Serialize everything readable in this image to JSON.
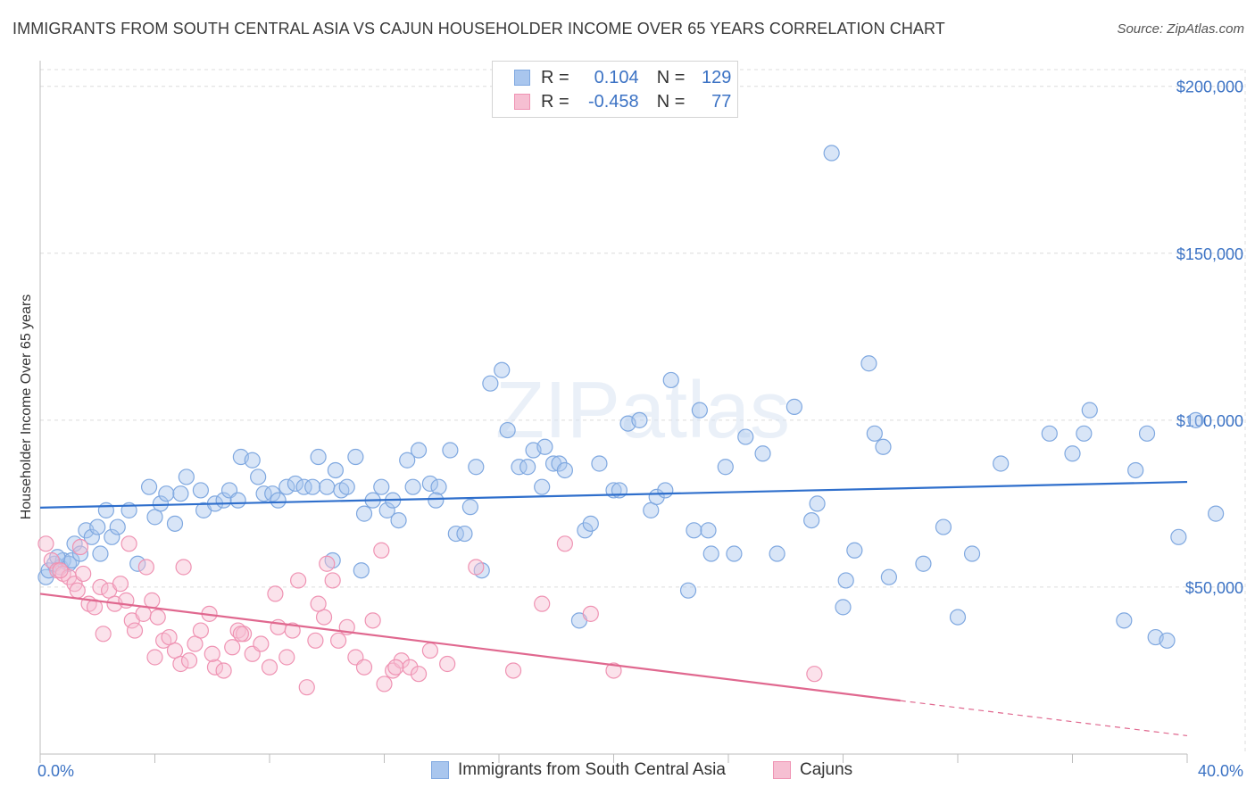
{
  "title": "IMMIGRANTS FROM SOUTH CENTRAL ASIA VS CAJUN HOUSEHOLDER INCOME OVER 65 YEARS CORRELATION CHART",
  "source": "Source: ZipAtlas.com",
  "watermark": "ZIPatlas",
  "colors": {
    "blue": "#7fa8e0",
    "blue_fill": "#a9c6ee",
    "blue_line": "#2f6fcc",
    "pink": "#ef93b3",
    "pink_fill": "#f6bfd2",
    "pink_line": "#e0688f",
    "axis_text": "#3b72c4",
    "grid": "#dcdcdc"
  },
  "legend": {
    "rows": [
      {
        "r_label": "R =",
        "r_value": "0.104",
        "n_label": "N =",
        "n_value": "129"
      },
      {
        "r_label": "R =",
        "r_value": "-0.458",
        "n_label": "N =",
        "n_value": "77"
      }
    ]
  },
  "bottom_legend": [
    "Immigrants from South Central Asia",
    "Cajuns"
  ],
  "chart_data": {
    "type": "scatter",
    "title": "IMMIGRANTS FROM SOUTH CENTRAL ASIA VS CAJUN HOUSEHOLDER INCOME OVER 65 YEARS CORRELATION CHART",
    "xlabel": "",
    "ylabel": "Householder Income Over 65 years",
    "xlim": [
      0,
      40
    ],
    "ylim": [
      0,
      205000
    ],
    "x_tick_labels": [
      "0.0%",
      "40.0%"
    ],
    "y_ticks": [
      50000,
      100000,
      150000,
      200000
    ],
    "y_tick_labels": [
      "$50,000",
      "$100,000",
      "$150,000",
      "$200,000"
    ],
    "grid": true,
    "legend_position": "top-center",
    "series": [
      {
        "name": "Immigrants from South Central Asia",
        "R": 0.104,
        "N": 129,
        "trend": {
          "x": [
            0,
            40
          ],
          "y": [
            73800,
            81500
          ]
        },
        "points": [
          [
            0.2,
            53000
          ],
          [
            0.3,
            55000
          ],
          [
            0.5,
            57000
          ],
          [
            0.7,
            56000
          ],
          [
            0.8,
            58000
          ],
          [
            1.0,
            57000
          ],
          [
            1.1,
            58000
          ],
          [
            0.6,
            59000
          ],
          [
            1.2,
            63000
          ],
          [
            1.4,
            60000
          ],
          [
            1.6,
            67000
          ],
          [
            1.8,
            65000
          ],
          [
            2.0,
            68000
          ],
          [
            2.3,
            73000
          ],
          [
            2.5,
            65000
          ],
          [
            2.7,
            68000
          ],
          [
            3.1,
            73000
          ],
          [
            3.4,
            57000
          ],
          [
            3.8,
            80000
          ],
          [
            4.0,
            71000
          ],
          [
            4.2,
            75000
          ],
          [
            4.4,
            78000
          ],
          [
            4.7,
            69000
          ],
          [
            4.9,
            78000
          ],
          [
            5.1,
            83000
          ],
          [
            5.6,
            79000
          ],
          [
            5.7,
            73000
          ],
          [
            6.1,
            75000
          ],
          [
            6.4,
            76000
          ],
          [
            6.6,
            79000
          ],
          [
            6.9,
            76000
          ],
          [
            7.0,
            89000
          ],
          [
            7.4,
            88000
          ],
          [
            7.6,
            83000
          ],
          [
            7.8,
            78000
          ],
          [
            8.1,
            78000
          ],
          [
            8.3,
            76000
          ],
          [
            8.6,
            80000
          ],
          [
            8.9,
            81000
          ],
          [
            9.2,
            80000
          ],
          [
            9.5,
            80000
          ],
          [
            9.7,
            89000
          ],
          [
            10.0,
            80000
          ],
          [
            10.3,
            85000
          ],
          [
            10.5,
            79000
          ],
          [
            10.7,
            80000
          ],
          [
            10.2,
            58000
          ],
          [
            11.0,
            89000
          ],
          [
            11.2,
            55000
          ],
          [
            11.3,
            72000
          ],
          [
            11.6,
            76000
          ],
          [
            11.9,
            80000
          ],
          [
            12.1,
            73000
          ],
          [
            12.3,
            76000
          ],
          [
            12.5,
            70000
          ],
          [
            12.8,
            88000
          ],
          [
            13.0,
            80000
          ],
          [
            13.2,
            91000
          ],
          [
            13.6,
            81000
          ],
          [
            13.9,
            80000
          ],
          [
            14.3,
            91000
          ],
          [
            14.5,
            66000
          ],
          [
            14.8,
            66000
          ],
          [
            15.0,
            74000
          ],
          [
            15.2,
            86000
          ],
          [
            15.4,
            55000
          ],
          [
            15.7,
            111000
          ],
          [
            16.1,
            115000
          ],
          [
            16.3,
            97000
          ],
          [
            16.7,
            86000
          ],
          [
            17.0,
            86000
          ],
          [
            17.2,
            91000
          ],
          [
            17.5,
            80000
          ],
          [
            17.6,
            92000
          ],
          [
            17.9,
            87000
          ],
          [
            18.1,
            87000
          ],
          [
            18.3,
            85000
          ],
          [
            18.8,
            40000
          ],
          [
            19.0,
            67000
          ],
          [
            19.2,
            69000
          ],
          [
            19.5,
            87000
          ],
          [
            20.0,
            79000
          ],
          [
            20.2,
            79000
          ],
          [
            20.5,
            99000
          ],
          [
            20.9,
            100000
          ],
          [
            21.3,
            73000
          ],
          [
            21.5,
            77000
          ],
          [
            21.8,
            79000
          ],
          [
            22.0,
            112000
          ],
          [
            22.6,
            49000
          ],
          [
            22.8,
            67000
          ],
          [
            23.0,
            103000
          ],
          [
            23.3,
            67000
          ],
          [
            23.4,
            60000
          ],
          [
            23.9,
            86000
          ],
          [
            24.2,
            60000
          ],
          [
            24.6,
            95000
          ],
          [
            25.2,
            90000
          ],
          [
            25.7,
            60000
          ],
          [
            26.3,
            104000
          ],
          [
            26.9,
            70000
          ],
          [
            27.1,
            75000
          ],
          [
            27.6,
            180000
          ],
          [
            28.0,
            44000
          ],
          [
            28.1,
            52000
          ],
          [
            28.4,
            61000
          ],
          [
            28.9,
            117000
          ],
          [
            29.1,
            96000
          ],
          [
            29.4,
            92000
          ],
          [
            29.6,
            53000
          ],
          [
            30.8,
            57000
          ],
          [
            31.5,
            68000
          ],
          [
            32.0,
            41000
          ],
          [
            32.5,
            60000
          ],
          [
            33.5,
            87000
          ],
          [
            35.2,
            96000
          ],
          [
            36.0,
            90000
          ],
          [
            36.4,
            96000
          ],
          [
            36.6,
            103000
          ],
          [
            37.8,
            40000
          ],
          [
            38.2,
            85000
          ],
          [
            38.6,
            96000
          ],
          [
            38.9,
            35000
          ],
          [
            39.3,
            34000
          ],
          [
            39.7,
            65000
          ],
          [
            40.3,
            100000
          ],
          [
            41.0,
            72000
          ],
          [
            2.1,
            60000
          ],
          [
            13.8,
            76000
          ]
        ]
      },
      {
        "name": "Cajuns",
        "R": -0.458,
        "N": 77,
        "trend": {
          "x": [
            0,
            30
          ],
          "y": [
            48000,
            16000
          ]
        },
        "trend_dashed": {
          "x": [
            30,
            40
          ],
          "y": [
            16000,
            5500
          ]
        },
        "points": [
          [
            0.2,
            63000
          ],
          [
            0.4,
            58000
          ],
          [
            0.6,
            55000
          ],
          [
            0.8,
            54000
          ],
          [
            1.0,
            53000
          ],
          [
            1.2,
            51000
          ],
          [
            1.3,
            49000
          ],
          [
            1.5,
            54000
          ],
          [
            1.7,
            45000
          ],
          [
            1.9,
            44000
          ],
          [
            2.1,
            50000
          ],
          [
            2.4,
            49000
          ],
          [
            2.6,
            45000
          ],
          [
            2.8,
            51000
          ],
          [
            3.0,
            46000
          ],
          [
            3.2,
            40000
          ],
          [
            3.3,
            37000
          ],
          [
            3.6,
            42000
          ],
          [
            3.9,
            46000
          ],
          [
            4.1,
            41000
          ],
          [
            4.3,
            34000
          ],
          [
            4.5,
            35000
          ],
          [
            4.7,
            31000
          ],
          [
            4.9,
            27000
          ],
          [
            5.2,
            28000
          ],
          [
            5.4,
            33000
          ],
          [
            5.6,
            37000
          ],
          [
            5.9,
            42000
          ],
          [
            6.1,
            26000
          ],
          [
            6.4,
            25000
          ],
          [
            6.7,
            32000
          ],
          [
            6.9,
            37000
          ],
          [
            7.1,
            36000
          ],
          [
            7.4,
            30000
          ],
          [
            7.7,
            33000
          ],
          [
            8.0,
            26000
          ],
          [
            8.3,
            38000
          ],
          [
            8.6,
            29000
          ],
          [
            8.8,
            37000
          ],
          [
            9.0,
            52000
          ],
          [
            9.3,
            20000
          ],
          [
            9.6,
            34000
          ],
          [
            9.9,
            41000
          ],
          [
            10.2,
            52000
          ],
          [
            10.4,
            34000
          ],
          [
            10.7,
            38000
          ],
          [
            11.0,
            29000
          ],
          [
            11.3,
            26000
          ],
          [
            11.6,
            40000
          ],
          [
            12.0,
            21000
          ],
          [
            12.3,
            25000
          ],
          [
            12.6,
            28000
          ],
          [
            12.9,
            26000
          ],
          [
            13.2,
            24000
          ],
          [
            13.6,
            31000
          ],
          [
            14.2,
            27000
          ],
          [
            15.2,
            56000
          ],
          [
            16.5,
            25000
          ],
          [
            17.5,
            45000
          ],
          [
            18.3,
            63000
          ],
          [
            19.2,
            42000
          ],
          [
            20.0,
            25000
          ],
          [
            27.0,
            24000
          ],
          [
            1.4,
            62000
          ],
          [
            3.1,
            63000
          ],
          [
            3.7,
            56000
          ],
          [
            5.0,
            56000
          ],
          [
            7.0,
            36000
          ],
          [
            9.7,
            45000
          ],
          [
            11.9,
            61000
          ],
          [
            2.2,
            36000
          ],
          [
            4.0,
            29000
          ],
          [
            6.0,
            30000
          ],
          [
            8.2,
            48000
          ],
          [
            10.0,
            57000
          ],
          [
            12.4,
            26000
          ],
          [
            0.7,
            55000
          ]
        ]
      }
    ]
  }
}
